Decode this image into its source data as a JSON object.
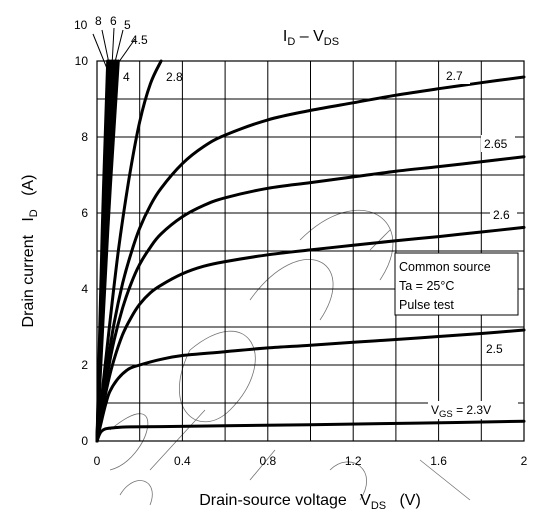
{
  "chart_data": {
    "type": "line",
    "title_parts": [
      "I",
      "D",
      " – V",
      "DS"
    ],
    "xlabel_parts": [
      "Drain-source voltage   V",
      "DS",
      "   (V)"
    ],
    "ylabel_parts": [
      "Drain current   I",
      "D",
      "   (A)"
    ],
    "xlim": [
      0,
      2
    ],
    "ylim": [
      0,
      10
    ],
    "x_ticks": [
      "0",
      "0.4",
      "0.8",
      "1.2",
      "1.6",
      "2"
    ],
    "y_ticks": [
      "0",
      "2",
      "4",
      "6",
      "8",
      "10"
    ],
    "grid": true,
    "note": [
      "Common source",
      "Ta = 25°C",
      "Pulse test"
    ],
    "series": [
      {
        "name": "V_GS = 2.3V",
        "label_parts": [
          "V",
          "GS",
          " = 2.3V"
        ],
        "x": [
          0,
          0.01,
          0.02,
          0.04,
          0.08,
          0.15,
          0.3,
          0.6,
          1.0,
          1.5,
          2.0
        ],
        "y": [
          0,
          0.15,
          0.25,
          0.32,
          0.35,
          0.37,
          0.38,
          0.4,
          0.43,
          0.47,
          0.52
        ]
      },
      {
        "name": "2.5",
        "label_parts": [
          "2.5"
        ],
        "x": [
          0,
          0.02,
          0.04,
          0.06,
          0.1,
          0.15,
          0.2,
          0.3,
          0.4,
          0.6,
          0.8,
          1.0,
          1.2,
          1.4,
          1.6,
          1.8,
          2.0
        ],
        "y": [
          0,
          0.5,
          0.95,
          1.3,
          1.65,
          1.9,
          2.0,
          2.15,
          2.25,
          2.35,
          2.45,
          2.52,
          2.6,
          2.67,
          2.75,
          2.83,
          2.92
        ]
      },
      {
        "name": "2.6",
        "label_parts": [
          "2.6"
        ],
        "x": [
          0,
          0.02,
          0.05,
          0.08,
          0.12,
          0.16,
          0.2,
          0.25,
          0.3,
          0.4,
          0.5,
          0.6,
          0.8,
          1.0,
          1.2,
          1.4,
          1.6,
          1.8,
          2.0
        ],
        "y": [
          0,
          0.65,
          1.5,
          2.15,
          2.8,
          3.25,
          3.6,
          3.9,
          4.1,
          4.4,
          4.6,
          4.72,
          4.9,
          5.03,
          5.15,
          5.27,
          5.38,
          5.5,
          5.62
        ]
      },
      {
        "name": "2.65",
        "label_parts": [
          "2.65"
        ],
        "x": [
          0,
          0.02,
          0.05,
          0.08,
          0.12,
          0.16,
          0.2,
          0.25,
          0.3,
          0.4,
          0.5,
          0.6,
          0.8,
          1.0,
          1.2,
          1.4,
          1.6,
          1.8,
          2.0
        ],
        "y": [
          0,
          0.75,
          1.8,
          2.65,
          3.5,
          4.15,
          4.65,
          5.1,
          5.45,
          5.9,
          6.2,
          6.4,
          6.65,
          6.8,
          6.95,
          7.1,
          7.22,
          7.35,
          7.48
        ]
      },
      {
        "name": "2.7",
        "label_parts": [
          "2.7"
        ],
        "x": [
          0,
          0.02,
          0.05,
          0.08,
          0.12,
          0.16,
          0.2,
          0.25,
          0.3,
          0.4,
          0.5,
          0.6,
          0.8,
          1.0,
          1.2,
          1.4,
          1.6,
          1.8,
          2.0
        ],
        "y": [
          0,
          0.85,
          2.05,
          3.1,
          4.15,
          4.95,
          5.6,
          6.2,
          6.65,
          7.3,
          7.75,
          8.05,
          8.45,
          8.7,
          8.9,
          9.1,
          9.27,
          9.43,
          9.58
        ]
      },
      {
        "name": "2.8",
        "label_parts": [
          "2.8"
        ],
        "x": [
          0,
          0.05,
          0.1,
          0.15,
          0.2,
          0.25,
          0.3
        ],
        "y": [
          0,
          2.6,
          5.0,
          6.9,
          8.4,
          9.4,
          10.0
        ]
      },
      {
        "name": "4",
        "label_parts": [
          "4"
        ],
        "x": [
          0,
          0.05,
          0.1
        ],
        "y": [
          0,
          5.5,
          10.0
        ]
      },
      {
        "name": "4.5",
        "label_parts": [
          "4.5"
        ],
        "x": [
          0,
          0.045,
          0.09
        ],
        "y": [
          0,
          5.6,
          10.0
        ]
      },
      {
        "name": "5",
        "label_parts": [
          "5"
        ],
        "x": [
          0,
          0.04,
          0.08
        ],
        "y": [
          0,
          5.5,
          10.0
        ]
      },
      {
        "name": "6",
        "label_parts": [
          "6"
        ],
        "x": [
          0,
          0.035,
          0.07
        ],
        "y": [
          0,
          5.6,
          10.0
        ]
      },
      {
        "name": "8",
        "label_parts": [
          "8"
        ],
        "x": [
          0,
          0.03,
          0.06
        ],
        "y": [
          0,
          5.6,
          10.0
        ]
      },
      {
        "name": "10",
        "label_parts": [
          "10"
        ],
        "x": [
          0,
          0.025,
          0.05
        ],
        "y": [
          0,
          5.6,
          10.0
        ]
      }
    ]
  }
}
